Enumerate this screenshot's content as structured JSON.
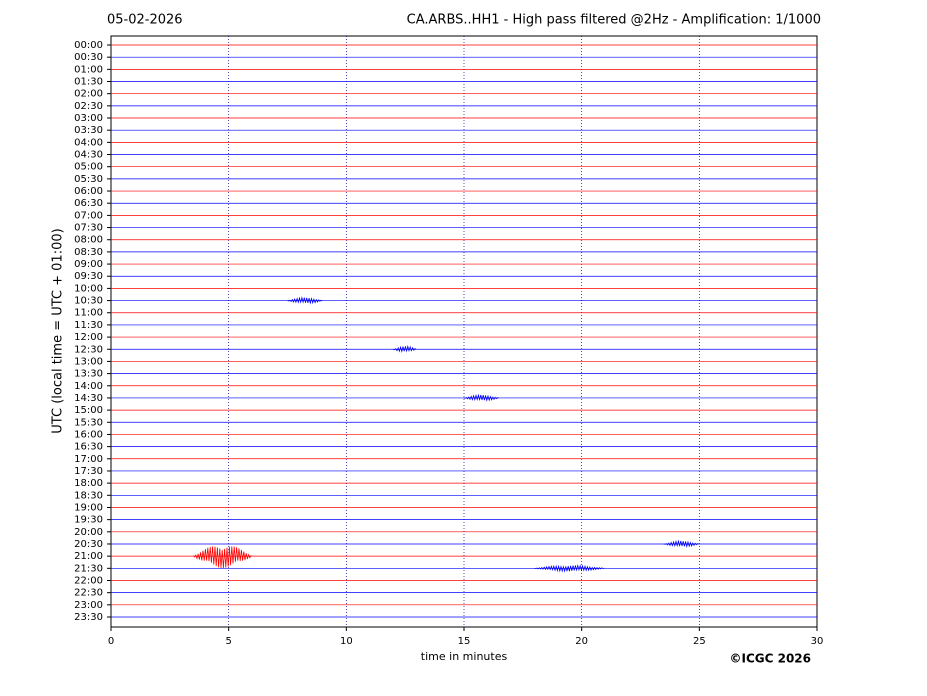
{
  "chart_data": {
    "type": "helicorder",
    "date": "05-02-2026",
    "title": "CA.ARBS..HH1 - High pass filtered @2Hz - Amplification: 1/1000",
    "ylabel": "UTC (local time = UTC + 01:00)",
    "xlabel": "time in minutes",
    "credit": "©ICGC 2026",
    "categories": [
      "00:00",
      "00:30",
      "01:00",
      "01:30",
      "02:00",
      "02:30",
      "03:00",
      "03:30",
      "04:00",
      "04:30",
      "05:00",
      "05:30",
      "06:00",
      "06:30",
      "07:00",
      "07:30",
      "08:00",
      "08:30",
      "09:00",
      "09:30",
      "10:00",
      "10:30",
      "11:00",
      "11:30",
      "12:00",
      "12:30",
      "13:00",
      "13:30",
      "14:00",
      "14:30",
      "15:00",
      "15:30",
      "16:00",
      "16:30",
      "17:00",
      "17:30",
      "18:00",
      "18:30",
      "19:00",
      "19:30",
      "20:00",
      "20:30",
      "21:00",
      "21:30",
      "22:00",
      "22:30",
      "23:00",
      "23:30"
    ],
    "colors": [
      "#ff0000",
      "#0000ff"
    ],
    "xlim": [
      0,
      30
    ],
    "xticks": [
      0,
      5,
      10,
      15,
      20,
      25,
      30
    ],
    "grid": true,
    "events": [
      {
        "row": 42,
        "start": 3.5,
        "end": 6
      },
      {
        "row": 43,
        "start": 18,
        "end": 21
      },
      {
        "row": 41,
        "start": 23.5,
        "end": 25
      },
      {
        "row": 29,
        "start": 15,
        "end": 16.5
      },
      {
        "row": 25,
        "start": 12,
        "end": 13
      },
      {
        "row": 21,
        "start": 7.5,
        "end": 9
      }
    ]
  }
}
